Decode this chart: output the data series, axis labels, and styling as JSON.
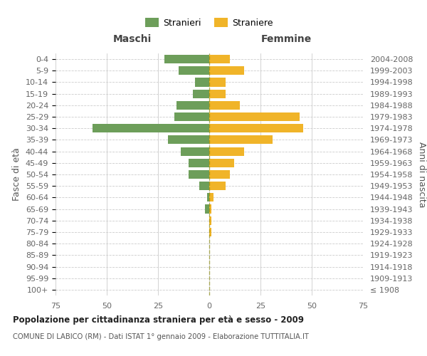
{
  "age_groups": [
    "100+",
    "95-99",
    "90-94",
    "85-89",
    "80-84",
    "75-79",
    "70-74",
    "65-69",
    "60-64",
    "55-59",
    "50-54",
    "45-49",
    "40-44",
    "35-39",
    "30-34",
    "25-29",
    "20-24",
    "15-19",
    "10-14",
    "5-9",
    "0-4"
  ],
  "birth_years": [
    "≤ 1908",
    "1909-1913",
    "1914-1918",
    "1919-1923",
    "1924-1928",
    "1929-1933",
    "1934-1938",
    "1939-1943",
    "1944-1948",
    "1949-1953",
    "1954-1958",
    "1959-1963",
    "1964-1968",
    "1969-1973",
    "1974-1978",
    "1979-1983",
    "1984-1988",
    "1989-1993",
    "1994-1998",
    "1999-2003",
    "2004-2008"
  ],
  "males": [
    0,
    0,
    0,
    0,
    0,
    0,
    0,
    2,
    1,
    5,
    10,
    10,
    14,
    20,
    57,
    17,
    16,
    8,
    7,
    15,
    22
  ],
  "females": [
    0,
    0,
    0,
    0,
    0,
    1,
    1,
    1,
    2,
    8,
    10,
    12,
    17,
    31,
    46,
    44,
    15,
    8,
    8,
    17,
    10
  ],
  "male_color": "#6d9e5a",
  "female_color": "#f0b429",
  "grid_color": "#cccccc",
  "background_color": "#ffffff",
  "title": "Popolazione per cittadinanza straniera per età e sesso - 2009",
  "subtitle": "COMUNE DI LABICO (RM) - Dati ISTAT 1° gennaio 2009 - Elaborazione TUTTITALIA.IT",
  "xlabel_left": "Maschi",
  "xlabel_right": "Femmine",
  "ylabel_left": "Fasce di età",
  "ylabel_right": "Anni di nascita",
  "legend_males": "Stranieri",
  "legend_females": "Straniere",
  "xlim": 75
}
